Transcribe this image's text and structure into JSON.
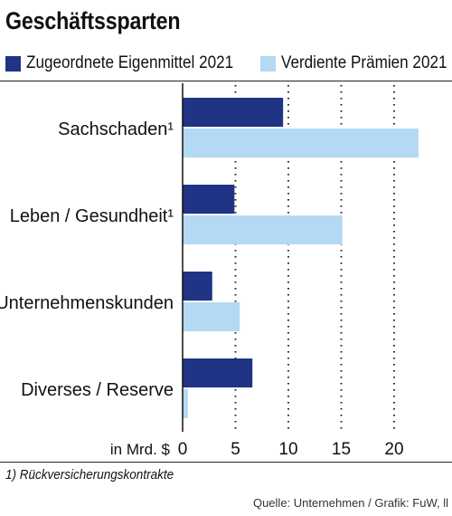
{
  "title": "Geschäftssparten",
  "footnote": "1) Rückversicherungskontrakte",
  "source": "Quelle: Unternehmen / Grafik: FuW, ll",
  "colors": {
    "series_dark": "#1f3484",
    "series_light": "#b4d9f2",
    "grid": "#222222"
  },
  "chart_data": {
    "type": "bar",
    "orientation": "horizontal",
    "categories": [
      "Sachschaden¹",
      "Leben / Gesundheit¹",
      "Unternehmenskunden",
      "Diverses / Reserve"
    ],
    "series": [
      {
        "name": "Zugeordnete Eigenmittel 2021",
        "values": [
          9.5,
          4.9,
          2.8,
          6.6
        ]
      },
      {
        "name": "Verdiente Prämien 2021",
        "values": [
          22.3,
          15.1,
          5.4,
          0.5
        ]
      }
    ],
    "xlabel": "in Mrd. $",
    "xticks": [
      0,
      5,
      10,
      15,
      20
    ],
    "xlim": [
      0,
      24
    ],
    "grid": "vertical dotted",
    "legend": "top"
  }
}
